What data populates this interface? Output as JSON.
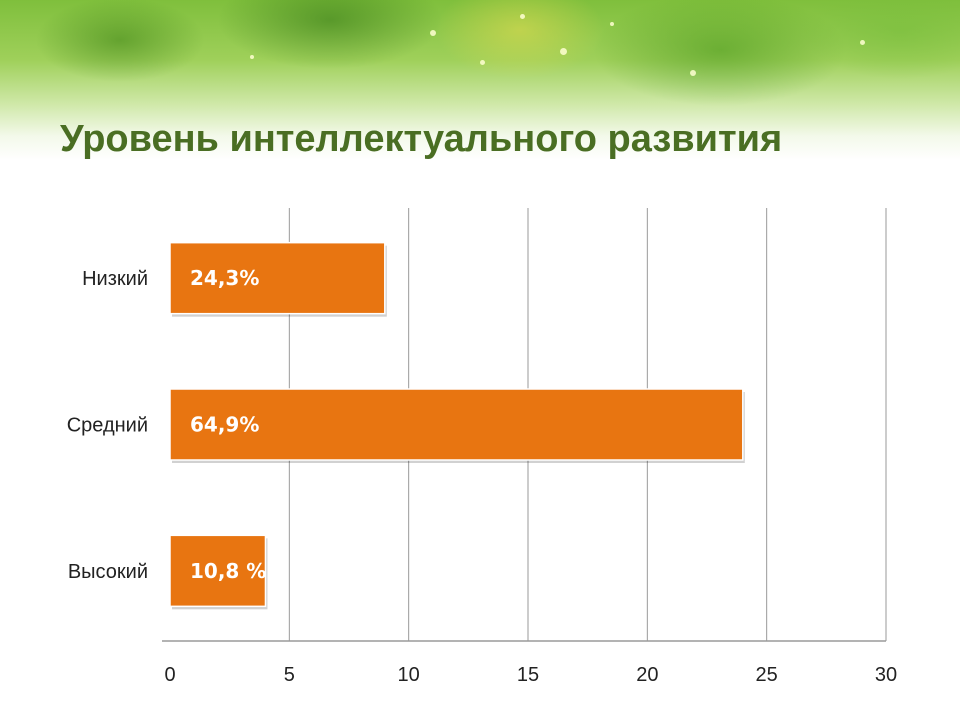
{
  "title": "Уровень интеллектуального развития",
  "colors": {
    "bar": "#e87511",
    "title": "#4a6e23",
    "grid": "#9a9a9a"
  },
  "chart_data": {
    "type": "bar",
    "orientation": "horizontal",
    "title": "Уровень интеллектуального развития",
    "categories": [
      "Низкий",
      "Средний",
      "Высокий"
    ],
    "values": [
      9,
      24,
      4
    ],
    "data_labels": [
      "24,3%",
      "64,9%",
      "10,8 %"
    ],
    "xlim": [
      0,
      30
    ],
    "xticks": [
      "0",
      "5",
      "10",
      "15",
      "20",
      "25",
      "30"
    ],
    "grid": true
  }
}
